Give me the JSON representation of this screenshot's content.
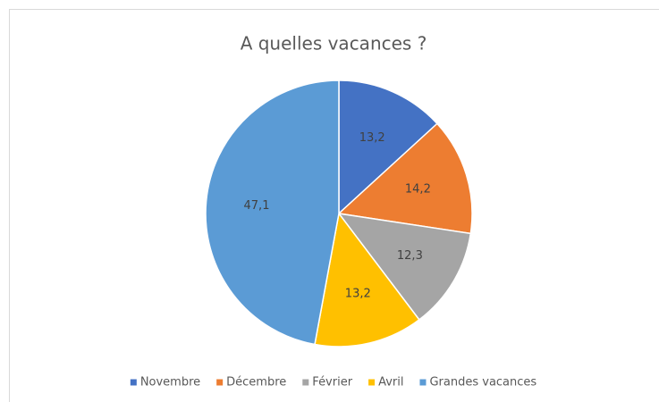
{
  "chart_data": {
    "type": "pie",
    "title": "A quelles vacances ?",
    "categories": [
      "Novembre",
      "Décembre",
      "Février",
      "Avril",
      "Grandes vacances"
    ],
    "values": [
      13.2,
      14.2,
      12.3,
      13.2,
      47.1
    ],
    "value_labels": [
      "13,2",
      "14,2",
      "12,3",
      "13,2",
      "47,1"
    ],
    "colors": [
      "#4472c4",
      "#ed7d31",
      "#a5a5a5",
      "#ffc000",
      "#5b9bd5"
    ],
    "legend": "bottom"
  }
}
